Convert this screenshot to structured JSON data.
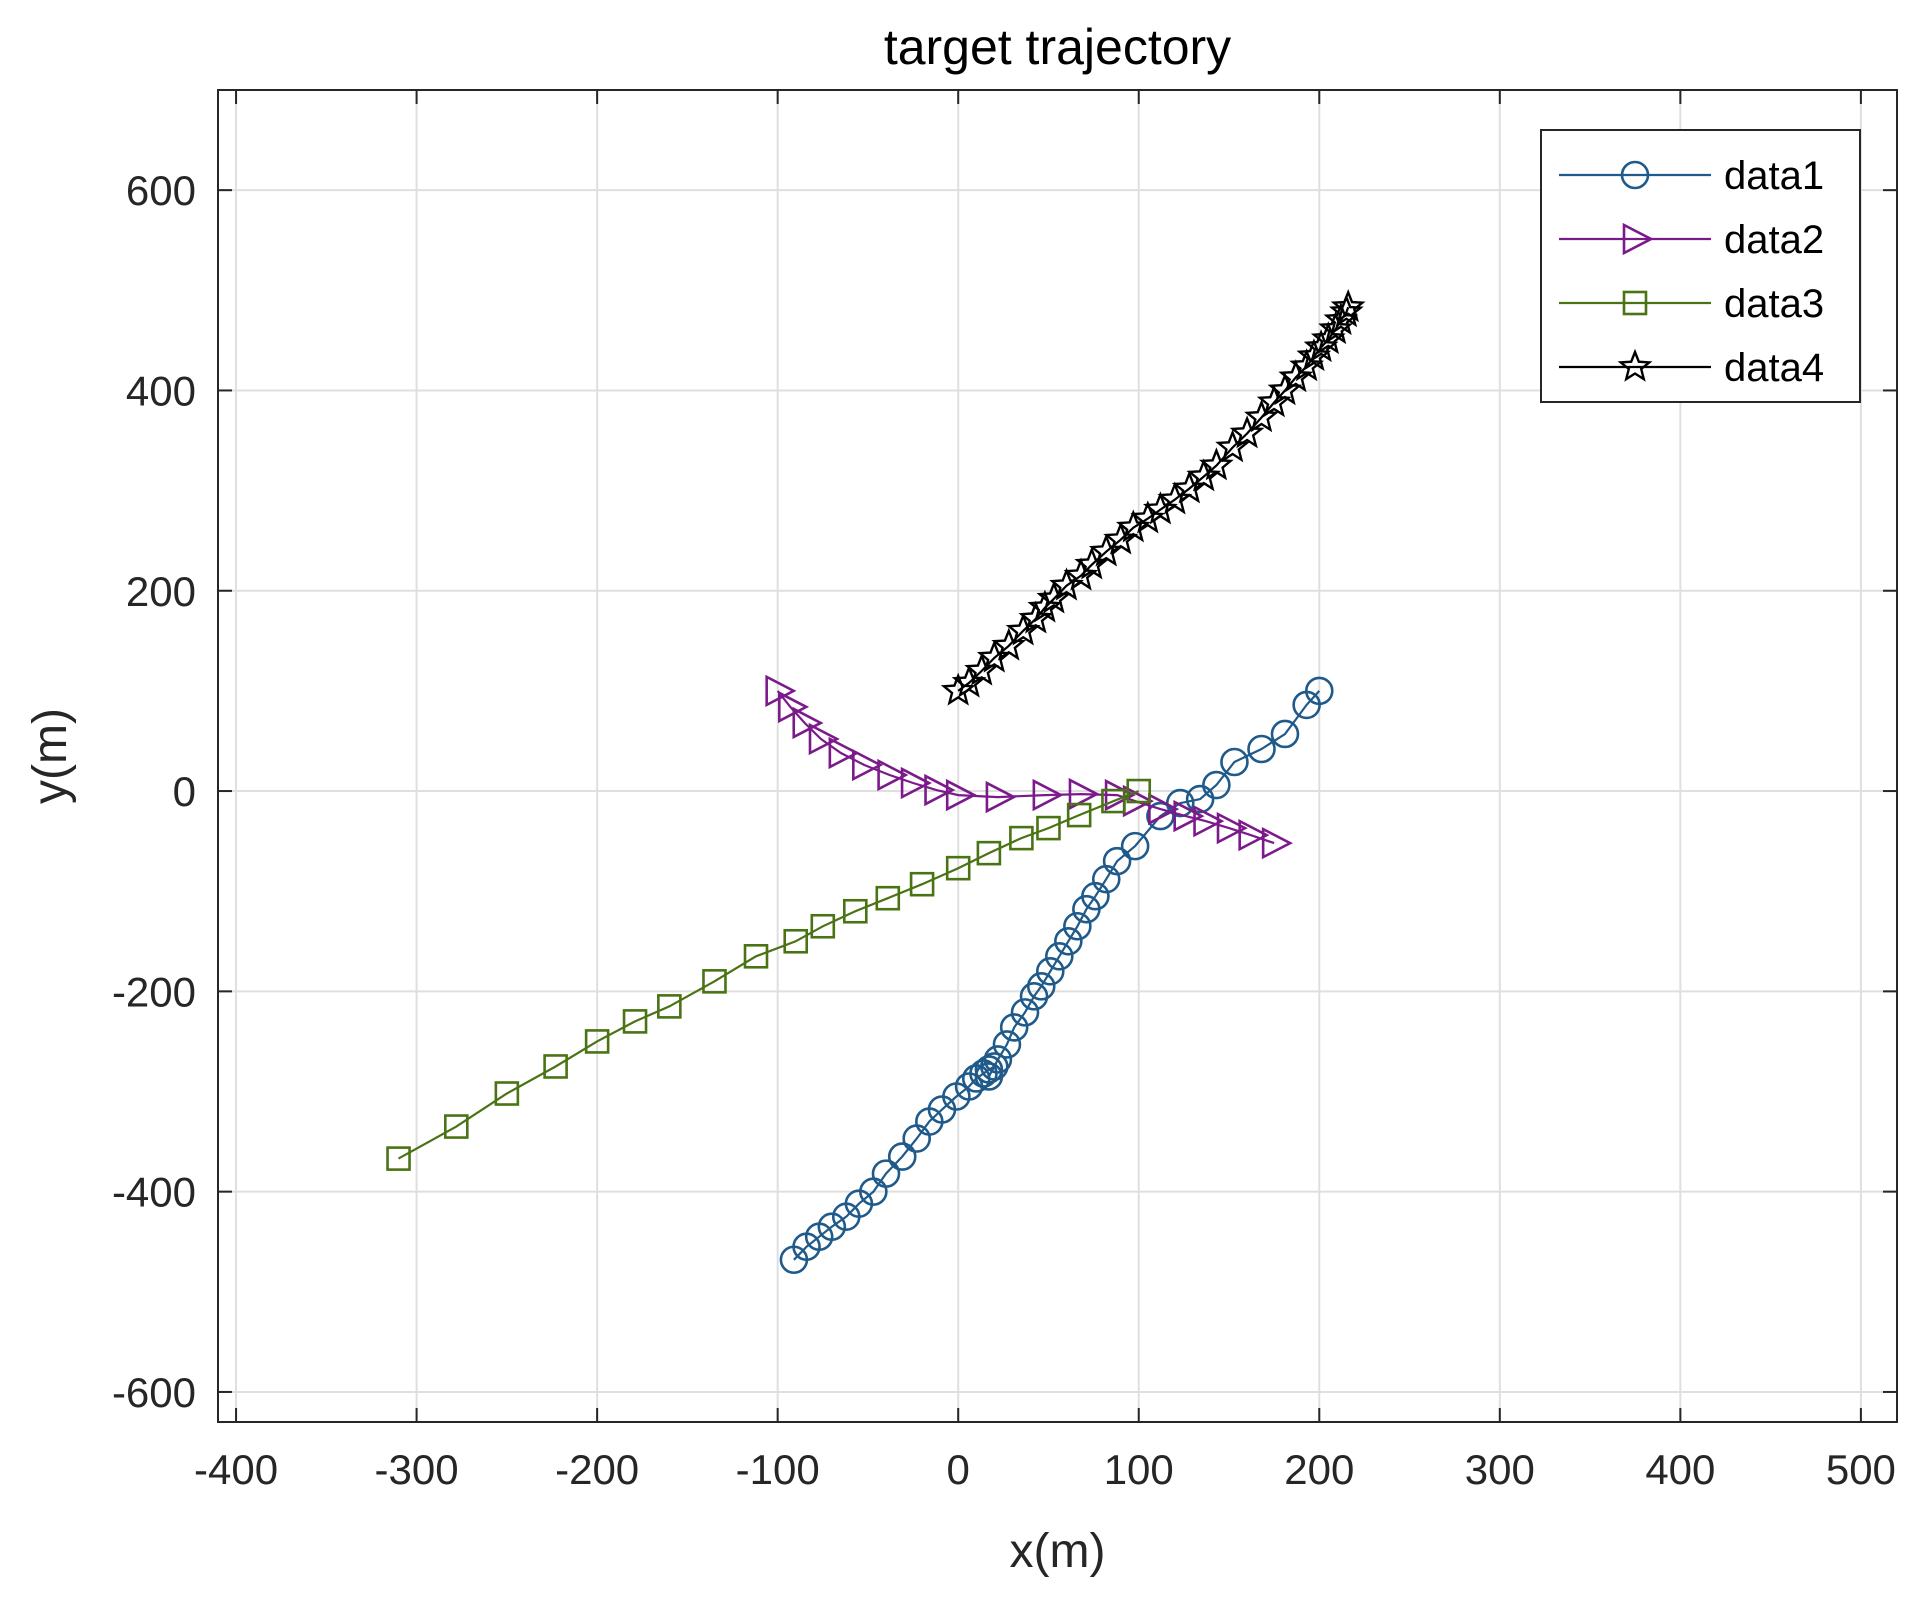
{
  "chart_data": {
    "type": "line",
    "title": "target trajectory",
    "xlabel": "x(m)",
    "ylabel": "y(m)",
    "xlim": [
      -410,
      520
    ],
    "ylim": [
      -630,
      700
    ],
    "xticks": [
      -400,
      -300,
      -200,
      -100,
      0,
      100,
      200,
      300,
      400,
      500
    ],
    "yticks": [
      -600,
      -400,
      -200,
      0,
      200,
      400,
      600
    ],
    "grid": true,
    "legend_position": "top-right",
    "series": [
      {
        "name": "data1",
        "color": "#1f5a8a",
        "marker": "circle",
        "x": [
          -91,
          -84,
          -77,
          -70,
          -62,
          -55,
          -47,
          -40,
          -31,
          -23,
          -16,
          -9,
          -1,
          6,
          10,
          14,
          17,
          20,
          17,
          22,
          27,
          31,
          37,
          42,
          46,
          51,
          56,
          61,
          66,
          71,
          76,
          82,
          88,
          98,
          112,
          123,
          134,
          143,
          153,
          168,
          181,
          193,
          200
        ],
        "y": [
          -468,
          -455,
          -445,
          -435,
          -425,
          -412,
          -400,
          -382,
          -365,
          -347,
          -330,
          -318,
          -305,
          -295,
          -287,
          -282,
          -278,
          -275,
          -285,
          -268,
          -253,
          -236,
          -221,
          -205,
          -195,
          -180,
          -165,
          -150,
          -135,
          -118,
          -105,
          -88,
          -70,
          -55,
          -25,
          -12,
          -8,
          6,
          29,
          42,
          57,
          86,
          100
        ]
      },
      {
        "name": "data2",
        "color": "#7b1a8a",
        "marker": "triangle-right",
        "x": [
          -100,
          -93,
          -85,
          -76,
          -65,
          -52,
          -38,
          -25,
          -12,
          0,
          22,
          48,
          68,
          88,
          98,
          112,
          126,
          137,
          150,
          162,
          175
        ],
        "y": [
          100,
          84,
          68,
          52,
          38,
          26,
          16,
          8,
          1,
          -4,
          -6,
          -4,
          -3,
          -4,
          -10,
          -18,
          -25,
          -30,
          -37,
          -44,
          -52
        ]
      },
      {
        "name": "data3",
        "color": "#4a7314",
        "marker": "square",
        "x": [
          -310,
          -278,
          -250,
          -223,
          -200,
          -179,
          -160,
          -135,
          -112,
          -90,
          -75,
          -57,
          -39,
          -20,
          0,
          17,
          35,
          50,
          67,
          86,
          100
        ],
        "y": [
          -367,
          -335,
          -302,
          -275,
          -250,
          -230,
          -215,
          -190,
          -165,
          -150,
          -135,
          -120,
          -107,
          -93,
          -77,
          -62,
          -47,
          -37,
          -24,
          -10,
          0
        ]
      },
      {
        "name": "data4",
        "color": "#000000",
        "marker": "star",
        "x": [
          0,
          6,
          13,
          20,
          28,
          36,
          43,
          48,
          53,
          60,
          68,
          74,
          82,
          90,
          97,
          105,
          112,
          120,
          128,
          136,
          143,
          152,
          160,
          168,
          175,
          181,
          187,
          193,
          197,
          201,
          205,
          209,
          212,
          215,
          216
        ],
        "y": [
          100,
          108,
          120,
          133,
          145,
          160,
          172,
          183,
          192,
          205,
          215,
          226,
          239,
          251,
          263,
          272,
          281,
          291,
          302,
          314,
          325,
          343,
          357,
          373,
          388,
          400,
          413,
          424,
          434,
          443,
          451,
          461,
          470,
          478,
          483
        ]
      }
    ]
  }
}
